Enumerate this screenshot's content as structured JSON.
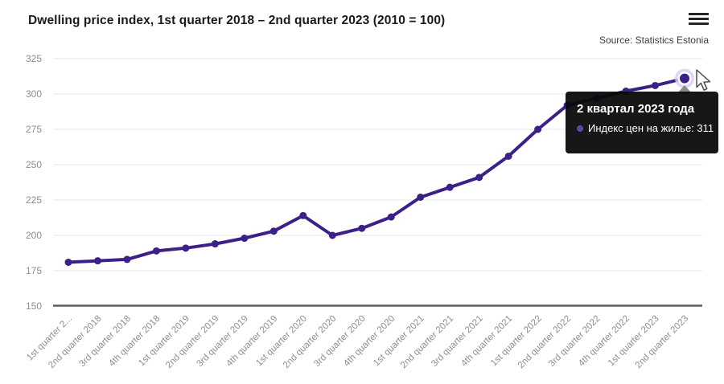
{
  "header": {
    "title": "Dwelling price index, 1st quarter 2018 – 2nd quarter 2023 (2010 = 100)",
    "source": "Source: Statistics Estonia",
    "menu_icon": "hamburger-menu-icon"
  },
  "tooltip": {
    "title": "2 квартал 2023 года",
    "text": "Индекс цен на жилье: 311",
    "series_label": "Индекс цен на жилье",
    "value": "311",
    "bullet_color": "#5b48a6",
    "background": "#080808"
  },
  "colors": {
    "series": "#3b2088",
    "grid": "#e7e7e7",
    "axis_line": "#5f5f5f",
    "tick_label": "#8e8e8e",
    "halo_outer": "#d6cdee",
    "halo_inner": "#ffffff",
    "title_text": "#1a1a1a"
  },
  "chart_data": {
    "type": "line",
    "title": "Dwelling price index, 1st quarter 2018 – 2nd quarter 2023 (2010 = 100)",
    "source": "Source: Statistics Estonia",
    "categories": [
      "1st quarter 2...",
      "2nd quarter 2018",
      "3rd quarter 2018",
      "4th quarter 2018",
      "1st quarter 2019",
      "2nd quarter 2019",
      "3rd quarter 2019",
      "4th quarter 2019",
      "1st quarter 2020",
      "2nd quarter 2020",
      "3rd quarter 2020",
      "4th quarter 2020",
      "1st quarter 2021",
      "2nd quarter 2021",
      "3rd quarter 2021",
      "4th quarter 2021",
      "1st quarter 2022",
      "2nd quarter 2022",
      "3rd quarter 2022",
      "4th quarter 2022",
      "1st quarter 2023",
      "2nd quarter 2023"
    ],
    "series": [
      {
        "name": "Индекс цен на жилье",
        "values": [
          181,
          182,
          183,
          189,
          191,
          194,
          198,
          203,
          214,
          200,
          205,
          213,
          227,
          234,
          241,
          256,
          275,
          292,
          297,
          302,
          306,
          311
        ]
      }
    ],
    "ylim": [
      150,
      325
    ],
    "y_ticks": [
      150,
      175,
      200,
      225,
      250,
      275,
      300,
      325
    ],
    "xlabel": "",
    "ylabel": "",
    "grid": true,
    "legend": false,
    "highlight_index": 21,
    "highlight_value": 311
  }
}
